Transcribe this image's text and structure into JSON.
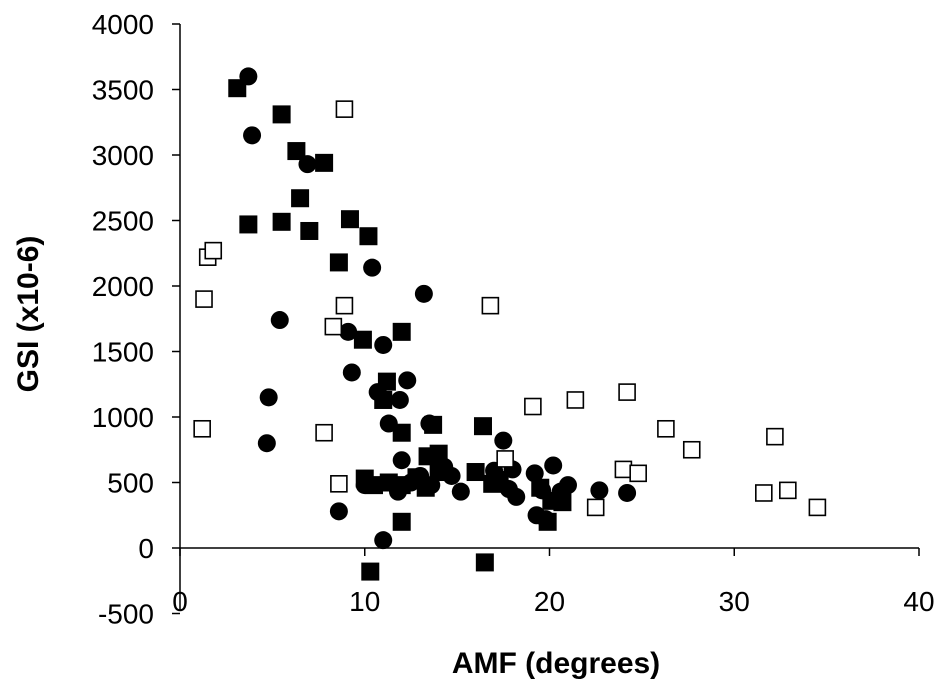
{
  "chart_data": {
    "type": "scatter",
    "title": "",
    "xlabel": "AMF (degrees)",
    "ylabel": "GSI (x10-6)",
    "xlim": [
      0,
      40
    ],
    "ylim": [
      -500,
      4000
    ],
    "x_ticks": [
      0,
      10,
      20,
      30,
      40
    ],
    "y_ticks": [
      -500,
      0,
      500,
      1000,
      1500,
      2000,
      2500,
      3000,
      3500,
      4000
    ],
    "x_tick_labels": [
      "0",
      "10",
      "20",
      "30",
      "40"
    ],
    "y_tick_labels": [
      "-500",
      "0",
      "500",
      "1000",
      "1500",
      "2000",
      "2500",
      "3000",
      "3500",
      "4000"
    ],
    "grid": false,
    "legend": "none",
    "series": [
      {
        "marker": "filled-circle",
        "color": "#000000",
        "points": [
          [
            3.7,
            3600
          ],
          [
            3.9,
            3150
          ],
          [
            6.9,
            2930
          ],
          [
            10.4,
            2140
          ],
          [
            13.2,
            1940
          ],
          [
            5.4,
            1740
          ],
          [
            9.1,
            1650
          ],
          [
            11.0,
            1550
          ],
          [
            9.3,
            1340
          ],
          [
            10.7,
            1190
          ],
          [
            12.3,
            1280
          ],
          [
            11.9,
            1130
          ],
          [
            4.8,
            1150
          ],
          [
            11.3,
            950
          ],
          [
            4.7,
            800
          ],
          [
            12.0,
            670
          ],
          [
            13.5,
            950
          ],
          [
            17.5,
            820
          ],
          [
            14.3,
            620
          ],
          [
            8.6,
            280
          ],
          [
            11.0,
            60
          ],
          [
            10.0,
            480
          ],
          [
            11.8,
            430
          ],
          [
            12.5,
            500
          ],
          [
            13.0,
            550
          ],
          [
            13.6,
            480
          ],
          [
            14.7,
            550
          ],
          [
            15.2,
            430
          ],
          [
            17.0,
            590
          ],
          [
            18.0,
            600
          ],
          [
            17.8,
            450
          ],
          [
            18.2,
            390
          ],
          [
            19.2,
            570
          ],
          [
            19.6,
            440
          ],
          [
            19.3,
            250
          ],
          [
            19.8,
            220
          ],
          [
            20.2,
            630
          ],
          [
            20.6,
            430
          ],
          [
            21.0,
            480
          ],
          [
            22.7,
            440
          ],
          [
            24.2,
            420
          ]
        ]
      },
      {
        "marker": "filled-square",
        "color": "#000000",
        "points": [
          [
            3.1,
            3510
          ],
          [
            5.5,
            3310
          ],
          [
            6.3,
            3030
          ],
          [
            7.8,
            2940
          ],
          [
            6.5,
            2670
          ],
          [
            3.7,
            2470
          ],
          [
            5.5,
            2490
          ],
          [
            7.0,
            2420
          ],
          [
            9.2,
            2510
          ],
          [
            10.2,
            2380
          ],
          [
            8.6,
            2180
          ],
          [
            9.9,
            1590
          ],
          [
            12.0,
            1650
          ],
          [
            11.2,
            1270
          ],
          [
            11.0,
            1130
          ],
          [
            12.0,
            880
          ],
          [
            13.7,
            940
          ],
          [
            16.4,
            930
          ],
          [
            13.4,
            700
          ],
          [
            14.0,
            720
          ],
          [
            10.0,
            530
          ],
          [
            10.5,
            480
          ],
          [
            11.3,
            500
          ],
          [
            12.0,
            480
          ],
          [
            12.8,
            540
          ],
          [
            13.3,
            460
          ],
          [
            14.0,
            580
          ],
          [
            16.0,
            580
          ],
          [
            16.9,
            490
          ],
          [
            17.3,
            520
          ],
          [
            19.5,
            460
          ],
          [
            20.1,
            360
          ],
          [
            20.7,
            350
          ],
          [
            12.0,
            200
          ],
          [
            19.9,
            200
          ],
          [
            10.3,
            -180
          ],
          [
            16.5,
            -110
          ]
        ]
      },
      {
        "marker": "open-square",
        "color": "#000000",
        "points": [
          [
            8.9,
            3350
          ],
          [
            1.5,
            2220
          ],
          [
            1.8,
            2270
          ],
          [
            1.3,
            1900
          ],
          [
            8.9,
            1850
          ],
          [
            16.8,
            1850
          ],
          [
            8.3,
            1690
          ],
          [
            1.2,
            910
          ],
          [
            7.8,
            880
          ],
          [
            8.6,
            490
          ],
          [
            17.6,
            680
          ],
          [
            19.1,
            1080
          ],
          [
            21.4,
            1130
          ],
          [
            24.2,
            1190
          ],
          [
            26.3,
            910
          ],
          [
            27.7,
            750
          ],
          [
            32.2,
            850
          ],
          [
            24.0,
            600
          ],
          [
            24.8,
            570
          ],
          [
            22.5,
            310
          ],
          [
            31.6,
            420
          ],
          [
            32.9,
            440
          ],
          [
            34.5,
            310
          ]
        ]
      }
    ]
  }
}
